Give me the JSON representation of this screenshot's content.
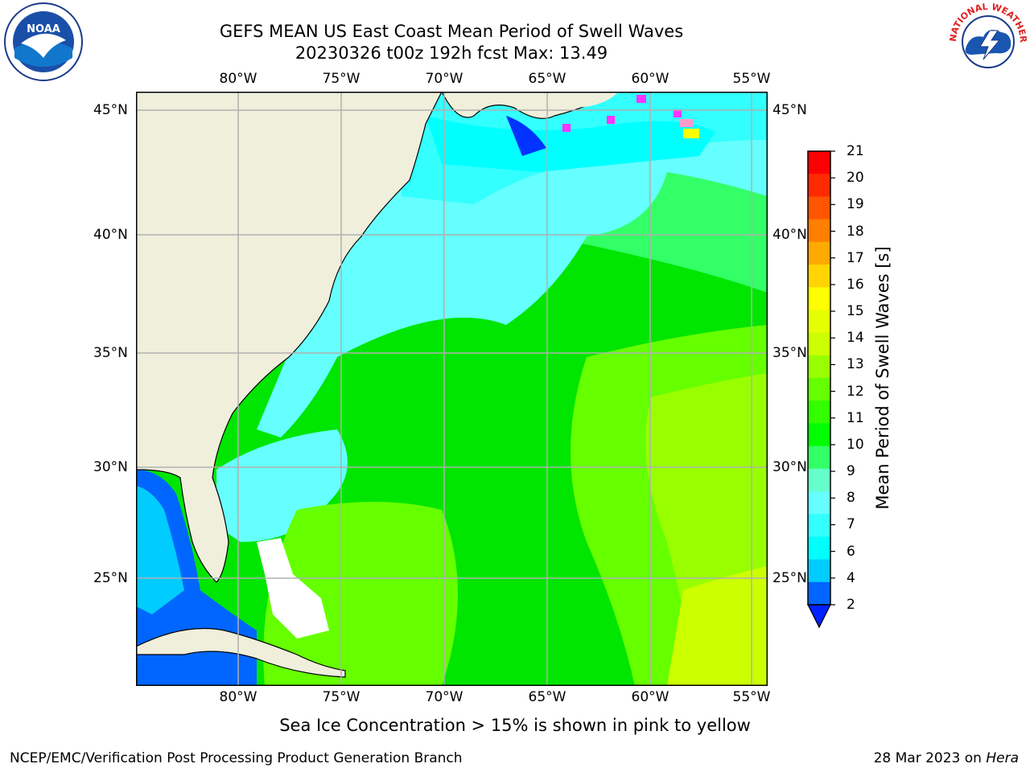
{
  "title": {
    "line1": "GEFS MEAN US East Coast Mean Period of Swell Waves",
    "line2": "20230326 t00z 192h fcst   Max: 13.49"
  },
  "logos": {
    "left": "NOAA",
    "right": "NATIONAL WEATHER SERVICE"
  },
  "axes": {
    "lon_labels": [
      "80°W",
      "75°W",
      "70°W",
      "65°W",
      "60°W",
      "55°W"
    ],
    "lat_labels": [
      "45°N",
      "40°N",
      "35°N",
      "30°N",
      "25°N"
    ]
  },
  "colorbar": {
    "label": "Mean Period of Swell Waves [s]",
    "ticks": [
      "21",
      "20",
      "19",
      "18",
      "17",
      "16",
      "15",
      "14",
      "13",
      "12",
      "11",
      "10",
      "9",
      "8",
      "7",
      "6",
      "4",
      "2"
    ],
    "colors": [
      "#ff0000",
      "#ff2a00",
      "#ff5500",
      "#ff7f00",
      "#ffaa00",
      "#ffd400",
      "#ffff00",
      "#e6ff00",
      "#ccff00",
      "#99ff00",
      "#66ff00",
      "#33ff00",
      "#00ff00",
      "#33ff66",
      "#66ffcc",
      "#66ffff",
      "#33ffff",
      "#00ffff",
      "#00ccff",
      "#0066ff"
    ]
  },
  "colors": {
    "land": "#efefdc",
    "ocean_low": "#00d8ff",
    "ocean_mid": "#33ff66",
    "ocean_high": "#00e600",
    "ocean_upper": "#99ff00",
    "cyan": "#33ffff",
    "ice_pink": "#ff33ff",
    "deep_blue": "#0033ff"
  },
  "caption": "Sea Ice Concentration > 15% is shown in pink to yellow",
  "footer": {
    "left": "NCEP/EMC/Verification Post Processing Product Generation Branch",
    "right_prefix": "28 Mar 2023 on ",
    "right_italic": "Hera"
  }
}
